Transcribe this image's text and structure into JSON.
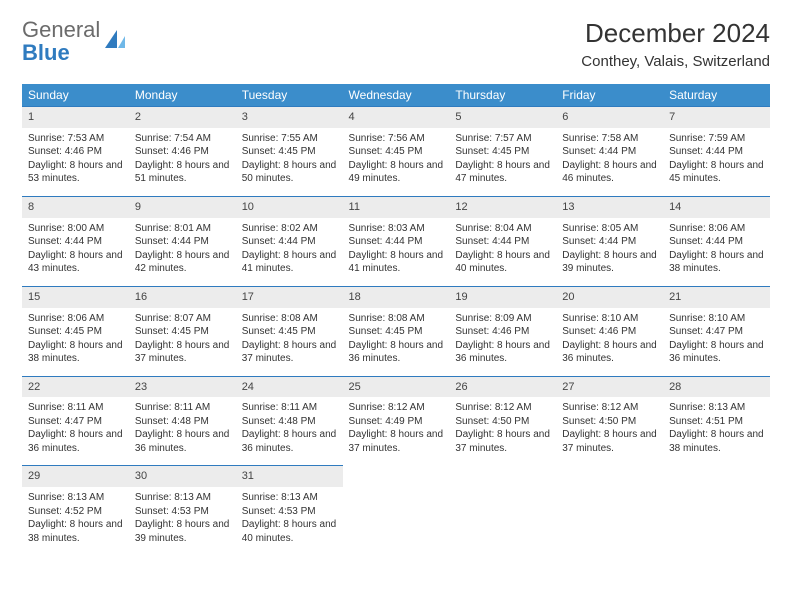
{
  "logo": {
    "word1": "General",
    "word2": "Blue"
  },
  "title": "December 2024",
  "location": "Conthey, Valais, Switzerland",
  "header_bg": "#3b8dcb",
  "daynum_bg": "#ececec",
  "rule_color": "#2f7bbf",
  "dow": [
    "Sunday",
    "Monday",
    "Tuesday",
    "Wednesday",
    "Thursday",
    "Friday",
    "Saturday"
  ],
  "weeks": [
    [
      {
        "n": "1",
        "sr": "7:53 AM",
        "ss": "4:46 PM",
        "dl": "8 hours and 53 minutes."
      },
      {
        "n": "2",
        "sr": "7:54 AM",
        "ss": "4:46 PM",
        "dl": "8 hours and 51 minutes."
      },
      {
        "n": "3",
        "sr": "7:55 AM",
        "ss": "4:45 PM",
        "dl": "8 hours and 50 minutes."
      },
      {
        "n": "4",
        "sr": "7:56 AM",
        "ss": "4:45 PM",
        "dl": "8 hours and 49 minutes."
      },
      {
        "n": "5",
        "sr": "7:57 AM",
        "ss": "4:45 PM",
        "dl": "8 hours and 47 minutes."
      },
      {
        "n": "6",
        "sr": "7:58 AM",
        "ss": "4:44 PM",
        "dl": "8 hours and 46 minutes."
      },
      {
        "n": "7",
        "sr": "7:59 AM",
        "ss": "4:44 PM",
        "dl": "8 hours and 45 minutes."
      }
    ],
    [
      {
        "n": "8",
        "sr": "8:00 AM",
        "ss": "4:44 PM",
        "dl": "8 hours and 43 minutes."
      },
      {
        "n": "9",
        "sr": "8:01 AM",
        "ss": "4:44 PM",
        "dl": "8 hours and 42 minutes."
      },
      {
        "n": "10",
        "sr": "8:02 AM",
        "ss": "4:44 PM",
        "dl": "8 hours and 41 minutes."
      },
      {
        "n": "11",
        "sr": "8:03 AM",
        "ss": "4:44 PM",
        "dl": "8 hours and 41 minutes."
      },
      {
        "n": "12",
        "sr": "8:04 AM",
        "ss": "4:44 PM",
        "dl": "8 hours and 40 minutes."
      },
      {
        "n": "13",
        "sr": "8:05 AM",
        "ss": "4:44 PM",
        "dl": "8 hours and 39 minutes."
      },
      {
        "n": "14",
        "sr": "8:06 AM",
        "ss": "4:44 PM",
        "dl": "8 hours and 38 minutes."
      }
    ],
    [
      {
        "n": "15",
        "sr": "8:06 AM",
        "ss": "4:45 PM",
        "dl": "8 hours and 38 minutes."
      },
      {
        "n": "16",
        "sr": "8:07 AM",
        "ss": "4:45 PM",
        "dl": "8 hours and 37 minutes."
      },
      {
        "n": "17",
        "sr": "8:08 AM",
        "ss": "4:45 PM",
        "dl": "8 hours and 37 minutes."
      },
      {
        "n": "18",
        "sr": "8:08 AM",
        "ss": "4:45 PM",
        "dl": "8 hours and 36 minutes."
      },
      {
        "n": "19",
        "sr": "8:09 AM",
        "ss": "4:46 PM",
        "dl": "8 hours and 36 minutes."
      },
      {
        "n": "20",
        "sr": "8:10 AM",
        "ss": "4:46 PM",
        "dl": "8 hours and 36 minutes."
      },
      {
        "n": "21",
        "sr": "8:10 AM",
        "ss": "4:47 PM",
        "dl": "8 hours and 36 minutes."
      }
    ],
    [
      {
        "n": "22",
        "sr": "8:11 AM",
        "ss": "4:47 PM",
        "dl": "8 hours and 36 minutes."
      },
      {
        "n": "23",
        "sr": "8:11 AM",
        "ss": "4:48 PM",
        "dl": "8 hours and 36 minutes."
      },
      {
        "n": "24",
        "sr": "8:11 AM",
        "ss": "4:48 PM",
        "dl": "8 hours and 36 minutes."
      },
      {
        "n": "25",
        "sr": "8:12 AM",
        "ss": "4:49 PM",
        "dl": "8 hours and 37 minutes."
      },
      {
        "n": "26",
        "sr": "8:12 AM",
        "ss": "4:50 PM",
        "dl": "8 hours and 37 minutes."
      },
      {
        "n": "27",
        "sr": "8:12 AM",
        "ss": "4:50 PM",
        "dl": "8 hours and 37 minutes."
      },
      {
        "n": "28",
        "sr": "8:13 AM",
        "ss": "4:51 PM",
        "dl": "8 hours and 38 minutes."
      }
    ],
    [
      {
        "n": "29",
        "sr": "8:13 AM",
        "ss": "4:52 PM",
        "dl": "8 hours and 38 minutes."
      },
      {
        "n": "30",
        "sr": "8:13 AM",
        "ss": "4:53 PM",
        "dl": "8 hours and 39 minutes."
      },
      {
        "n": "31",
        "sr": "8:13 AM",
        "ss": "4:53 PM",
        "dl": "8 hours and 40 minutes."
      },
      null,
      null,
      null,
      null
    ]
  ],
  "labels": {
    "sunrise": "Sunrise:",
    "sunset": "Sunset:",
    "daylight": "Daylight:"
  }
}
